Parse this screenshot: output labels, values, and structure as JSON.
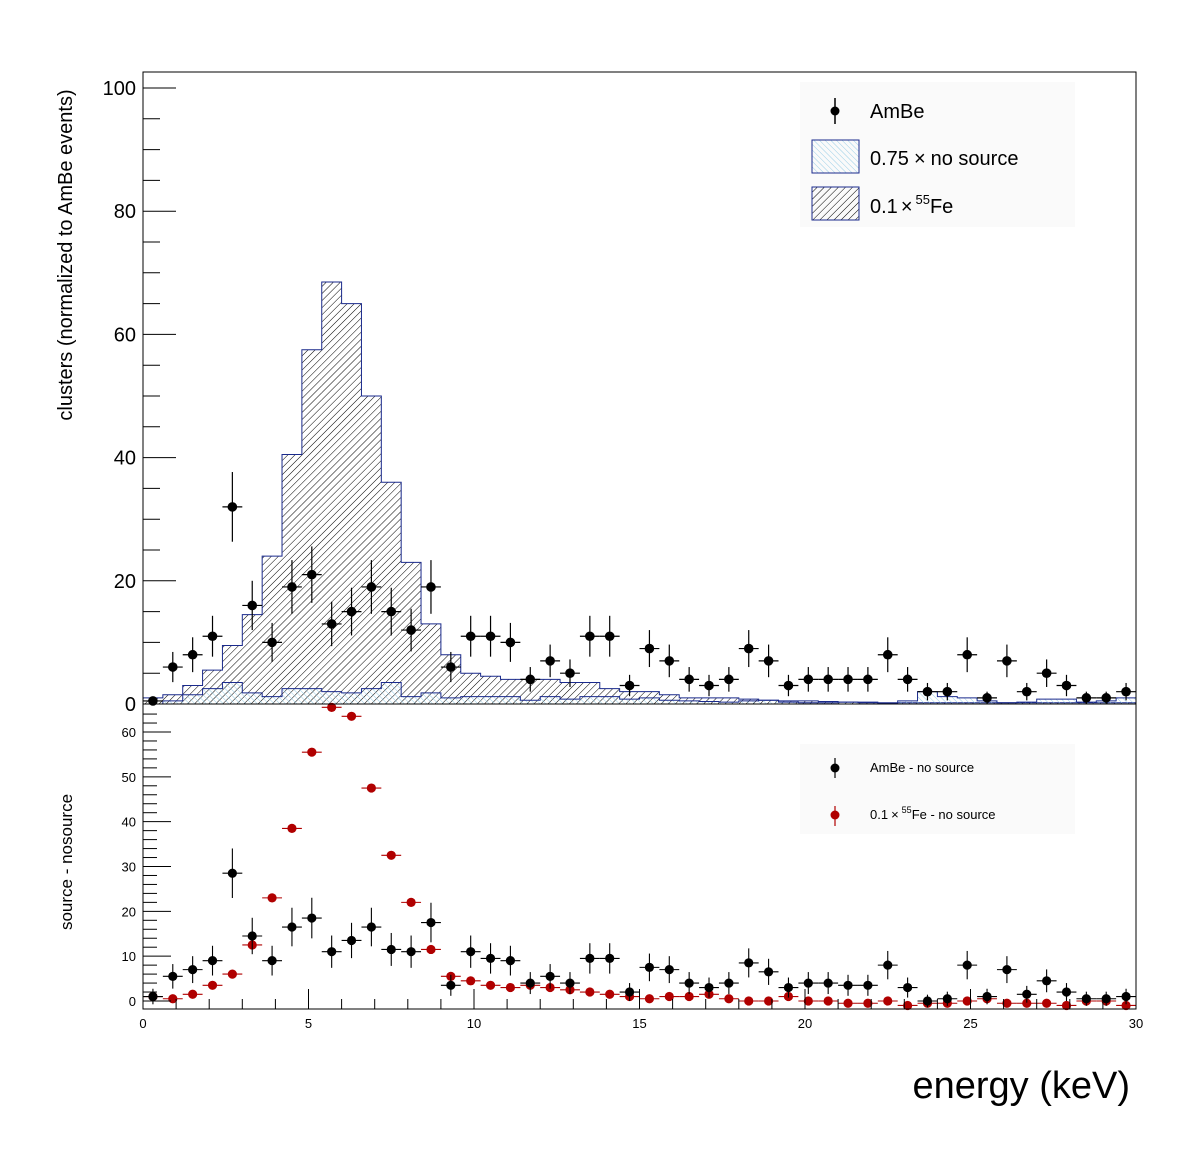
{
  "colors": {
    "data_points": "#000000",
    "fe_ratio_points": "#b00000",
    "hist_outline": "#1a2a8c",
    "nosource_hatch": "#8ecae6",
    "fe_hatch": "#000000"
  },
  "chart_data": [
    {
      "type": "bar",
      "panel": "top",
      "ylabel": "clusters (normalized to AmBe events)",
      "xlim": [
        0,
        30
      ],
      "ylim": [
        0,
        100
      ],
      "yticks": [
        "0",
        "20",
        "40",
        "60",
        "80",
        "100"
      ],
      "bin_width": 0.6,
      "x": [
        0.3,
        0.9,
        1.5,
        2.1,
        2.7,
        3.3,
        3.9,
        4.5,
        5.1,
        5.7,
        6.3,
        6.9,
        7.5,
        8.1,
        8.7,
        9.3,
        9.9,
        10.5,
        11.1,
        11.7,
        12.3,
        12.9,
        13.5,
        14.1,
        14.7,
        15.3,
        15.9,
        16.5,
        17.1,
        17.7,
        18.3,
        18.9,
        19.5,
        20.1,
        20.7,
        21.3,
        21.9,
        22.5,
        23.1,
        23.7,
        24.3,
        24.9,
        25.5,
        26.1,
        26.7,
        27.3,
        27.9,
        28.5,
        29.1,
        29.7
      ],
      "series": [
        {
          "name": "AmBe",
          "style": "markers",
          "values": [
            0.5,
            6,
            8,
            11,
            32,
            16,
            10,
            19,
            21,
            13,
            15,
            19,
            15,
            12,
            19,
            6,
            11,
            11,
            10,
            4,
            7,
            5,
            11,
            11,
            3,
            9,
            7,
            4,
            3,
            4,
            9,
            7,
            3,
            4,
            4,
            4,
            4,
            8,
            4,
            2,
            2,
            8,
            1,
            7,
            2,
            5,
            3,
            1,
            1,
            2
          ]
        },
        {
          "name": "0.75 × no source",
          "style": "hatched-histogram",
          "values": [
            0,
            0.5,
            1.5,
            2.5,
            3.5,
            1.8,
            1.2,
            2.5,
            2.5,
            2,
            1.8,
            2.5,
            3.5,
            1.2,
            1.8,
            1,
            1.2,
            1.2,
            1.2,
            0.6,
            1.2,
            0.8,
            1.2,
            1.2,
            0.8,
            1,
            0.6,
            0.5,
            0.4,
            0.3,
            0.5,
            0.6,
            0.3,
            0.2,
            0.2,
            0.3,
            0.2,
            0.1,
            0.5,
            2,
            1.2,
            1,
            0.5,
            0.2,
            0.3,
            0.8,
            0.8,
            0.3,
            0.5,
            1
          ]
        },
        {
          "name": "0.1 × ⁵⁵Fe",
          "style": "hatched-histogram",
          "values": [
            1,
            1.5,
            3,
            5.5,
            9.5,
            14.5,
            24,
            40.5,
            57.5,
            68.5,
            65,
            50,
            36,
            23,
            13,
            8,
            5,
            4.5,
            4,
            4,
            4,
            3.5,
            3.5,
            2.5,
            2,
            2,
            1.5,
            1,
            1,
            1,
            0.8,
            0.6,
            0.5,
            0.5,
            0.4,
            0.3,
            0.3,
            0.2,
            0.2,
            0.2,
            0.2,
            0.2,
            0.2,
            0.2,
            0.2,
            0.2,
            0.2,
            0.2,
            0.2,
            0.2
          ]
        }
      ],
      "legend": {
        "placement": "top-right",
        "entries": [
          {
            "label": "AmBe"
          },
          {
            "label": "0.75",
            "op": "×",
            "rest": "no source"
          },
          {
            "label": "0.1",
            "op": "×",
            "sup": "55",
            "rest": "Fe"
          }
        ]
      }
    },
    {
      "type": "scatter",
      "panel": "bottom",
      "xlabel": "energy (keV)",
      "ylabel": "source - nosource",
      "xlim": [
        0,
        30
      ],
      "ylim": [
        -1,
        68
      ],
      "xticks": [
        "0",
        "5",
        "10",
        "15",
        "20",
        "25",
        "30"
      ],
      "yticks": [
        "0",
        "10",
        "20",
        "30",
        "40",
        "50",
        "60"
      ],
      "x": [
        0.3,
        0.9,
        1.5,
        2.1,
        2.7,
        3.3,
        3.9,
        4.5,
        5.1,
        5.7,
        6.3,
        6.9,
        7.5,
        8.1,
        8.7,
        9.3,
        9.9,
        10.5,
        11.1,
        11.7,
        12.3,
        12.9,
        13.5,
        14.1,
        14.7,
        15.3,
        15.9,
        16.5,
        17.1,
        17.7,
        18.3,
        18.9,
        19.5,
        20.1,
        20.7,
        21.3,
        21.9,
        22.5,
        23.1,
        23.7,
        24.3,
        24.9,
        25.5,
        26.1,
        26.7,
        27.3,
        27.9,
        28.5,
        29.1,
        29.7
      ],
      "series": [
        {
          "name": "AmBe - no source",
          "values": [
            1,
            5.5,
            7,
            9,
            28.5,
            14.5,
            9,
            16.5,
            18.5,
            11,
            13.5,
            16.5,
            11.5,
            11,
            17.5,
            3.5,
            11,
            9.5,
            9,
            4,
            5.5,
            4,
            9.5,
            9.5,
            2,
            7.5,
            7,
            4,
            3,
            4,
            8.5,
            6.5,
            3,
            4,
            4,
            3.5,
            3.5,
            8,
            3,
            0,
            0.5,
            8,
            1,
            7,
            1.5,
            4.5,
            2,
            0.5,
            0.5,
            1
          ]
        },
        {
          "name": "0.1 × ⁵⁵Fe - no source",
          "values": [
            1,
            0.5,
            1.5,
            3.5,
            6,
            12.5,
            23,
            38.5,
            55.5,
            65.5,
            63.5,
            47.5,
            32.5,
            22,
            11.5,
            5.5,
            4.5,
            3.5,
            3,
            3.5,
            3,
            2.5,
            2,
            1.5,
            1,
            0.5,
            1,
            1,
            1.5,
            0.5,
            0,
            0,
            1,
            0,
            0,
            -0.5,
            -0.5,
            0,
            -1,
            -0.5,
            -0.5,
            0,
            0.5,
            -0.5,
            -0.5,
            -0.5,
            -1,
            0,
            0,
            -1
          ]
        }
      ],
      "legend": {
        "placement": "top-right",
        "entries": [
          {
            "label": "AmBe - no source"
          },
          {
            "label": "0.1",
            "op": "×",
            "sup": "55",
            "rest": "Fe - no source"
          }
        ]
      }
    }
  ]
}
